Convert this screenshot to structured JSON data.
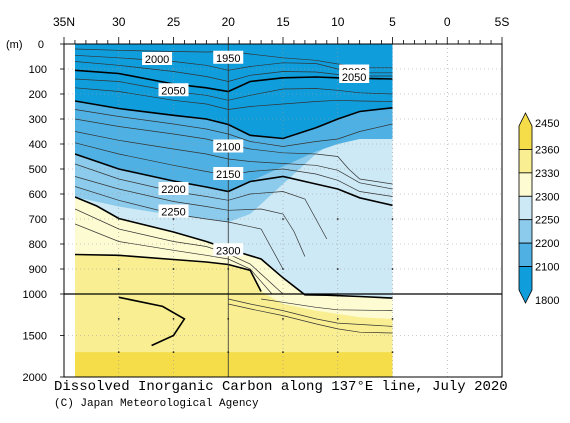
{
  "chart_data": {
    "type": "heatmap",
    "title": "Dissolved Inorganic Carbon along 137°E line, July 2020",
    "credit": "(C) Japan Meteorological Agency",
    "x_axis": {
      "label": "",
      "tick_labels": [
        "35N",
        "30",
        "25",
        "20",
        "15",
        "10",
        "5",
        "0",
        "5S"
      ],
      "tick_values": [
        35,
        30,
        25,
        20,
        15,
        10,
        5,
        0,
        -5
      ],
      "range": [
        35,
        -5
      ],
      "data_extent": [
        34,
        5
      ]
    },
    "y_axis": {
      "unit_label": "(m)",
      "upper_tick_labels": [
        "0",
        "100",
        "200",
        "300",
        "400",
        "500",
        "600",
        "700",
        "800",
        "900",
        "1000"
      ],
      "upper_tick_values": [
        0,
        100,
        200,
        300,
        400,
        500,
        600,
        700,
        800,
        900,
        1000
      ],
      "lower_tick_labels": [
        "1500",
        "2000"
      ],
      "lower_tick_values": [
        1500,
        2000
      ],
      "range": [
        0,
        2000
      ],
      "scale_break": 1000
    },
    "colorbar": {
      "labels": [
        "2450",
        "2360",
        "2330",
        "2300",
        "2250",
        "2200",
        "2100",
        "1800"
      ],
      "levels": [
        2450,
        2360,
        2330,
        2300,
        2250,
        2200,
        2100,
        1800
      ],
      "colors": [
        "#f4dd48",
        "#f9ef92",
        "#fdfbd2",
        "#cde9f5",
        "#8ccbec",
        "#4fb1e3",
        "#0f9ddc"
      ]
    },
    "contour_labels": [
      {
        "text": "2000",
        "lat": 26.5,
        "depth": 60
      },
      {
        "text": "1950",
        "lat": 20.0,
        "depth": 55
      },
      {
        "text": "2000",
        "lat": 8.5,
        "depth": 110
      },
      {
        "text": "2050",
        "lat": 8.5,
        "depth": 132
      },
      {
        "text": "2050",
        "lat": 25.0,
        "depth": 185
      },
      {
        "text": "2100",
        "lat": 20.0,
        "depth": 410
      },
      {
        "text": "2150",
        "lat": 20.0,
        "depth": 520
      },
      {
        "text": "2200",
        "lat": 25.0,
        "depth": 580
      },
      {
        "text": "2250",
        "lat": 25.0,
        "depth": 670
      },
      {
        "text": "2300",
        "lat": 20.0,
        "depth": 825
      }
    ],
    "bold_contours": [
      {
        "level": 2050,
        "points": [
          [
            34,
            105
          ],
          [
            30,
            118
          ],
          [
            25,
            160
          ],
          [
            22,
            175
          ],
          [
            20,
            190
          ],
          [
            18,
            150
          ],
          [
            15,
            135
          ],
          [
            12,
            132
          ],
          [
            10,
            135
          ],
          [
            5,
            140
          ]
        ]
      },
      {
        "level": 2100,
        "points": [
          [
            34,
            228
          ],
          [
            30,
            258
          ],
          [
            25,
            285
          ],
          [
            22,
            300
          ],
          [
            20,
            322
          ],
          [
            18,
            365
          ],
          [
            15,
            378
          ],
          [
            12,
            335
          ],
          [
            10,
            300
          ],
          [
            8,
            270
          ],
          [
            5,
            255
          ]
        ]
      },
      {
        "level": 2200,
        "points": [
          [
            34,
            440
          ],
          [
            30,
            500
          ],
          [
            25,
            548
          ],
          [
            22,
            572
          ],
          [
            20,
            590
          ],
          [
            18,
            550
          ],
          [
            15,
            530
          ],
          [
            12,
            560
          ],
          [
            10,
            580
          ],
          [
            8,
            615
          ],
          [
            5,
            645
          ]
        ]
      },
      {
        "level": 2300,
        "points": [
          [
            34,
            612
          ],
          [
            32,
            648
          ],
          [
            30,
            698
          ],
          [
            25,
            752
          ],
          [
            22,
            790
          ],
          [
            20,
            820
          ],
          [
            17,
            860
          ],
          [
            15,
            935
          ],
          [
            13,
            1010
          ],
          [
            11,
            1015
          ],
          [
            8,
            1030
          ],
          [
            5,
            1050
          ]
        ]
      },
      {
        "level": 2330,
        "points": [
          [
            34,
            842
          ],
          [
            30,
            845
          ],
          [
            25,
            862
          ],
          [
            22,
            872
          ],
          [
            20,
            882
          ],
          [
            18,
            905
          ],
          [
            17,
            990
          ]
        ]
      },
      {
        "level": 2360,
        "points": [
          [
            30,
            1040
          ],
          [
            26,
            1150
          ],
          [
            24,
            1300
          ],
          [
            25,
            1500
          ],
          [
            27,
            1620
          ]
        ]
      }
    ],
    "thin_contours": [
      [
        [
          34,
          20
        ],
        [
          30,
          25
        ],
        [
          25,
          30
        ],
        [
          22,
          32
        ],
        [
          20,
          30
        ],
        [
          18,
          40
        ],
        [
          15,
          55
        ],
        [
          12,
          65
        ],
        [
          10,
          80
        ],
        [
          7,
          95
        ],
        [
          5,
          95
        ]
      ],
      [
        [
          34,
          45
        ],
        [
          30,
          55
        ],
        [
          25,
          70
        ],
        [
          22,
          85
        ],
        [
          20,
          105
        ],
        [
          18,
          90
        ],
        [
          15,
          75
        ],
        [
          12,
          78
        ],
        [
          10,
          100
        ],
        [
          8,
          115
        ],
        [
          5,
          115
        ]
      ],
      [
        [
          34,
          70
        ],
        [
          30,
          85
        ],
        [
          25,
          110
        ],
        [
          22,
          130
        ],
        [
          20,
          150
        ],
        [
          18,
          125
        ],
        [
          15,
          110
        ],
        [
          12,
          112
        ],
        [
          10,
          122
        ],
        [
          8,
          128
        ],
        [
          5,
          128
        ]
      ],
      [
        [
          34,
          140
        ],
        [
          30,
          150
        ],
        [
          25,
          190
        ],
        [
          22,
          205
        ],
        [
          20,
          225
        ],
        [
          18,
          205
        ],
        [
          15,
          180
        ],
        [
          12,
          178
        ],
        [
          10,
          185
        ],
        [
          8,
          195
        ],
        [
          5,
          200
        ]
      ],
      [
        [
          34,
          175
        ],
        [
          30,
          190
        ],
        [
          25,
          225
        ],
        [
          22,
          240
        ],
        [
          20,
          262
        ],
        [
          18,
          250
        ],
        [
          15,
          240
        ],
        [
          12,
          230
        ],
        [
          10,
          225
        ],
        [
          8,
          228
        ],
        [
          5,
          230
        ]
      ],
      [
        [
          34,
          262
        ],
        [
          30,
          290
        ],
        [
          25,
          320
        ],
        [
          22,
          340
        ],
        [
          20,
          360
        ],
        [
          18,
          390
        ],
        [
          15,
          410
        ],
        [
          12,
          390
        ],
        [
          10,
          380
        ],
        [
          8,
          350
        ],
        [
          5,
          320
        ]
      ],
      [
        [
          34,
          300
        ],
        [
          30,
          330
        ],
        [
          25,
          360
        ],
        [
          22,
          380
        ],
        [
          20,
          402
        ],
        [
          18,
          420
        ],
        [
          15,
          435
        ],
        [
          12,
          440
        ],
        [
          10,
          450
        ],
        [
          9,
          500
        ],
        [
          8,
          540
        ],
        [
          5,
          560
        ]
      ],
      [
        [
          34,
          350
        ],
        [
          30,
          385
        ],
        [
          25,
          420
        ],
        [
          22,
          440
        ],
        [
          20,
          460
        ],
        [
          18,
          470
        ],
        [
          15,
          478
        ],
        [
          12,
          485
        ],
        [
          10,
          505
        ],
        [
          8,
          555
        ],
        [
          5,
          580
        ]
      ],
      [
        [
          34,
          395
        ],
        [
          30,
          440
        ],
        [
          25,
          485
        ],
        [
          22,
          510
        ],
        [
          20,
          525
        ],
        [
          18,
          510
        ],
        [
          15,
          500
        ],
        [
          12,
          520
        ],
        [
          10,
          545
        ],
        [
          8,
          590
        ],
        [
          5,
          610
        ]
      ],
      [
        [
          34,
          480
        ],
        [
          30,
          540
        ],
        [
          25,
          590
        ],
        [
          22,
          610
        ],
        [
          20,
          625
        ],
        [
          18,
          600
        ],
        [
          15,
          590
        ],
        [
          13,
          620
        ],
        [
          12,
          700
        ],
        [
          11,
          780
        ]
      ],
      [
        [
          34,
          530
        ],
        [
          30,
          580
        ],
        [
          25,
          630
        ],
        [
          22,
          650
        ],
        [
          20,
          665
        ],
        [
          17,
          660
        ],
        [
          15,
          680
        ],
        [
          14,
          750
        ],
        [
          13,
          850
        ]
      ],
      [
        [
          34,
          570
        ],
        [
          30,
          625
        ],
        [
          25,
          680
        ],
        [
          22,
          700
        ],
        [
          20,
          712
        ],
        [
          17,
          740
        ],
        [
          16,
          820
        ],
        [
          15,
          900
        ]
      ],
      [
        [
          34,
          660
        ],
        [
          30,
          740
        ],
        [
          25,
          790
        ],
        [
          22,
          810
        ],
        [
          20,
          840
        ],
        [
          18,
          880
        ],
        [
          15,
          1000
        ]
      ],
      [
        [
          34,
          720
        ],
        [
          30,
          790
        ],
        [
          25,
          825
        ],
        [
          22,
          845
        ],
        [
          20,
          860
        ],
        [
          18,
          900
        ],
        [
          16,
          1000
        ]
      ],
      [
        [
          20,
          1060
        ],
        [
          18,
          1120
        ],
        [
          15,
          1200
        ],
        [
          12,
          1300
        ],
        [
          10,
          1350
        ],
        [
          5,
          1390
        ]
      ],
      [
        [
          20,
          1120
        ],
        [
          18,
          1180
        ],
        [
          15,
          1260
        ],
        [
          12,
          1360
        ],
        [
          10,
          1420
        ],
        [
          8,
          1460
        ],
        [
          5,
          1470
        ]
      ],
      [
        [
          17,
          1060
        ],
        [
          15,
          1100
        ],
        [
          12,
          1160
        ],
        [
          10,
          1190
        ],
        [
          5,
          1200
        ]
      ]
    ]
  }
}
